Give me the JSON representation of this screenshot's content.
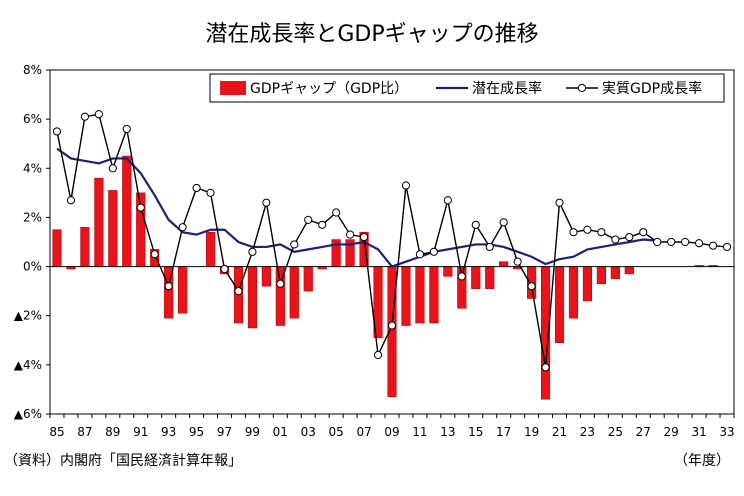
{
  "chart_data": {
    "type": "bar",
    "title": "潜在成長率とGDPギャップの推移",
    "source": "（資料）内閣府「国民経済計算年報」",
    "x_unit": "（年度）",
    "ylim": [
      -6,
      8
    ],
    "y_ticks": [
      8,
      6,
      4,
      2,
      0,
      -2,
      -4,
      -6
    ],
    "y_tick_labels": [
      "8%",
      "6%",
      "4%",
      "2%",
      "0%",
      "▲2%",
      "▲4%",
      "▲6%"
    ],
    "x_tick_labels": [
      "85",
      "87",
      "89",
      "91",
      "93",
      "95",
      "97",
      "99",
      "01",
      "03",
      "05",
      "07",
      "09",
      "11",
      "13",
      "15",
      "17",
      "19",
      "21",
      "23",
      "25",
      "27",
      "29",
      "31",
      "33"
    ],
    "categories": [
      "85",
      "86",
      "87",
      "88",
      "89",
      "90",
      "91",
      "92",
      "93",
      "94",
      "95",
      "96",
      "97",
      "98",
      "99",
      "00",
      "01",
      "02",
      "03",
      "04",
      "05",
      "06",
      "07",
      "08",
      "09",
      "10",
      "11",
      "12",
      "13",
      "14",
      "15",
      "16",
      "17",
      "18",
      "19",
      "20",
      "21",
      "22",
      "23",
      "24",
      "25",
      "26",
      "27",
      "28",
      "29",
      "30",
      "31",
      "32",
      "33"
    ],
    "legend_position": "top-right",
    "grid": false,
    "colors": {
      "gap_bar": "#e8141b",
      "potential_line": "#1f1f7a",
      "real_line": "#000000"
    },
    "series": [
      {
        "name": "GDPギャップ（GDP比）",
        "kind": "bar",
        "values": [
          1.5,
          -0.1,
          1.6,
          3.6,
          3.1,
          4.5,
          3.0,
          0.7,
          -2.1,
          -1.9,
          0.0,
          1.4,
          -0.3,
          -2.3,
          -2.5,
          -0.8,
          -2.4,
          -2.1,
          -1.0,
          -0.1,
          1.1,
          1.1,
          1.4,
          -2.9,
          -5.3,
          -2.4,
          -2.3,
          -2.3,
          -0.4,
          -1.7,
          -0.9,
          -0.9,
          0.2,
          -0.1,
          -1.3,
          -5.4,
          -3.1,
          -2.1,
          -1.4,
          -0.7,
          -0.5,
          -0.3,
          0.0,
          0.0,
          0.0,
          0.0,
          0.05,
          0.05,
          0.0
        ]
      },
      {
        "name": "潜在成長率",
        "kind": "line",
        "values": [
          4.8,
          4.4,
          4.3,
          4.2,
          4.4,
          4.4,
          3.8,
          2.9,
          1.9,
          1.4,
          1.3,
          1.5,
          1.5,
          1.0,
          0.8,
          0.8,
          0.9,
          0.6,
          0.7,
          0.8,
          0.9,
          0.9,
          1.0,
          0.7,
          0.0,
          0.2,
          0.4,
          0.6,
          0.7,
          0.8,
          0.9,
          0.9,
          0.8,
          0.6,
          0.4,
          0.1,
          0.3,
          0.4,
          0.7,
          0.8,
          0.9,
          1.0,
          1.1,
          1.05,
          null,
          null,
          null,
          null,
          null
        ]
      },
      {
        "name": "実質GDP成長率",
        "kind": "line-marker",
        "values": [
          5.5,
          2.7,
          6.1,
          6.2,
          4.0,
          5.6,
          2.4,
          0.5,
          -0.8,
          1.6,
          3.2,
          3.0,
          -0.1,
          -1.0,
          0.6,
          2.6,
          -0.7,
          0.9,
          1.9,
          1.7,
          2.2,
          1.3,
          1.2,
          -3.6,
          -2.4,
          3.3,
          0.5,
          0.6,
          2.7,
          -0.4,
          1.7,
          0.8,
          1.8,
          0.2,
          -0.8,
          -4.1,
          2.6,
          1.4,
          1.5,
          1.4,
          1.1,
          1.2,
          1.4,
          1.0,
          1.0,
          1.0,
          0.95,
          0.85,
          0.8
        ]
      }
    ]
  }
}
